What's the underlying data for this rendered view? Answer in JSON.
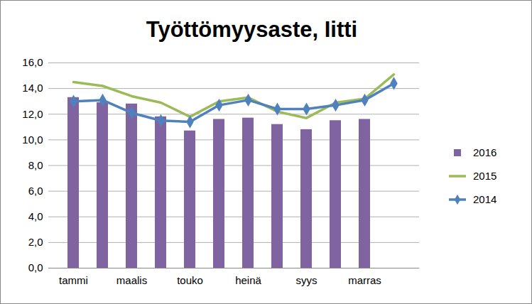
{
  "chart_data": {
    "type": "bar",
    "title": "Työttömyysaste, Iitti",
    "categories": [
      "tammi",
      null,
      "maalis",
      null,
      "touko",
      null,
      "heinä",
      null,
      "syys",
      null,
      "marras",
      null
    ],
    "series": [
      {
        "name": "2016",
        "type": "bar",
        "color": "#8064a2",
        "values": [
          13.3,
          12.9,
          12.8,
          11.8,
          10.7,
          11.6,
          11.7,
          11.2,
          10.8,
          11.5,
          11.6,
          null
        ]
      },
      {
        "name": "2015",
        "type": "line",
        "color": "#9bbb59",
        "values": [
          14.5,
          14.2,
          13.4,
          12.9,
          11.8,
          13.0,
          13.3,
          12.2,
          11.7,
          12.9,
          13.2,
          15.1
        ]
      },
      {
        "name": "2014",
        "type": "line",
        "color": "#4f81bd",
        "marker": "diamond",
        "values": [
          13.0,
          13.1,
          12.1,
          11.5,
          11.4,
          12.7,
          13.1,
          12.4,
          12.4,
          12.7,
          13.1,
          14.4
        ]
      }
    ],
    "ylim": [
      0,
      16
    ],
    "yticks": [
      {
        "value": 0,
        "label": "0,0"
      },
      {
        "value": 2,
        "label": "2,0"
      },
      {
        "value": 4,
        "label": "4,0"
      },
      {
        "value": 6,
        "label": "6,0"
      },
      {
        "value": 8,
        "label": "8,0"
      },
      {
        "value": 10,
        "label": "10,0"
      },
      {
        "value": 12,
        "label": "12,0"
      },
      {
        "value": 14,
        "label": "14,0"
      },
      {
        "value": 16,
        "label": "16,0"
      }
    ],
    "grid": true,
    "legend": "right"
  }
}
